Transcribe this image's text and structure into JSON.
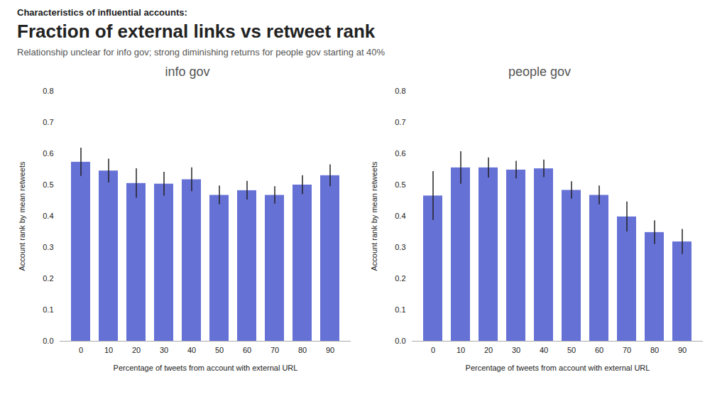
{
  "annotations": [
    "Characteristics of influential accounts:"
  ],
  "title": "Fraction of external links vs retweet rank",
  "subtitle": "Relationship unclear for info gov; strong diminishing returns for people gov starting at 40%",
  "chart_data": [
    {
      "type": "bar",
      "title": "info gov",
      "categories": [
        0,
        10,
        20,
        30,
        40,
        50,
        60,
        70,
        80,
        90
      ],
      "values": [
        0.573,
        0.545,
        0.505,
        0.503,
        0.517,
        0.467,
        0.482,
        0.467,
        0.5,
        0.53
      ],
      "errors": [
        0.045,
        0.038,
        0.047,
        0.038,
        0.038,
        0.03,
        0.03,
        0.028,
        0.03,
        0.035
      ],
      "color": "#6671d6",
      "xlabel": "Percentage of tweets from account with external URL",
      "ylabel": "Account rank by mean retweets",
      "ylim": [
        0,
        0.8
      ],
      "yticks": [
        {
          "value": 0.0,
          "label": "0.0"
        },
        {
          "value": 0.1,
          "label": "0.1"
        },
        {
          "value": 0.2,
          "label": "0.2"
        },
        {
          "value": 0.3,
          "label": "0.3"
        },
        {
          "value": 0.4,
          "label": "0.4"
        },
        {
          "value": 0.5,
          "label": "0.5"
        },
        {
          "value": 0.6,
          "label": "0.6"
        },
        {
          "value": 0.7,
          "label": "0.7"
        },
        {
          "value": 0.8,
          "label": "0.8"
        }
      ],
      "grid": false
    },
    {
      "type": "bar",
      "title": "people gov",
      "categories": [
        0,
        10,
        20,
        30,
        40,
        50,
        60,
        70,
        80,
        90
      ],
      "values": [
        0.465,
        0.555,
        0.555,
        0.548,
        0.552,
        0.483,
        0.467,
        0.398,
        0.348,
        0.318
      ],
      "errors": [
        0.078,
        0.052,
        0.032,
        0.028,
        0.028,
        0.028,
        0.03,
        0.048,
        0.038,
        0.04
      ],
      "color": "#6671d6",
      "xlabel": "Percentage of tweets from account with external URL",
      "ylabel": "Account rank by mean retweets",
      "ylim": [
        0,
        0.8
      ],
      "yticks": [
        {
          "value": 0.0,
          "label": "0.0"
        },
        {
          "value": 0.1,
          "label": "0.1"
        },
        {
          "value": 0.2,
          "label": "0.2"
        },
        {
          "value": 0.3,
          "label": "0.3"
        },
        {
          "value": 0.4,
          "label": "0.4"
        },
        {
          "value": 0.5,
          "label": "0.5"
        },
        {
          "value": 0.6,
          "label": "0.6"
        },
        {
          "value": 0.7,
          "label": "0.7"
        },
        {
          "value": 0.8,
          "label": "0.8"
        }
      ],
      "grid": false
    }
  ]
}
